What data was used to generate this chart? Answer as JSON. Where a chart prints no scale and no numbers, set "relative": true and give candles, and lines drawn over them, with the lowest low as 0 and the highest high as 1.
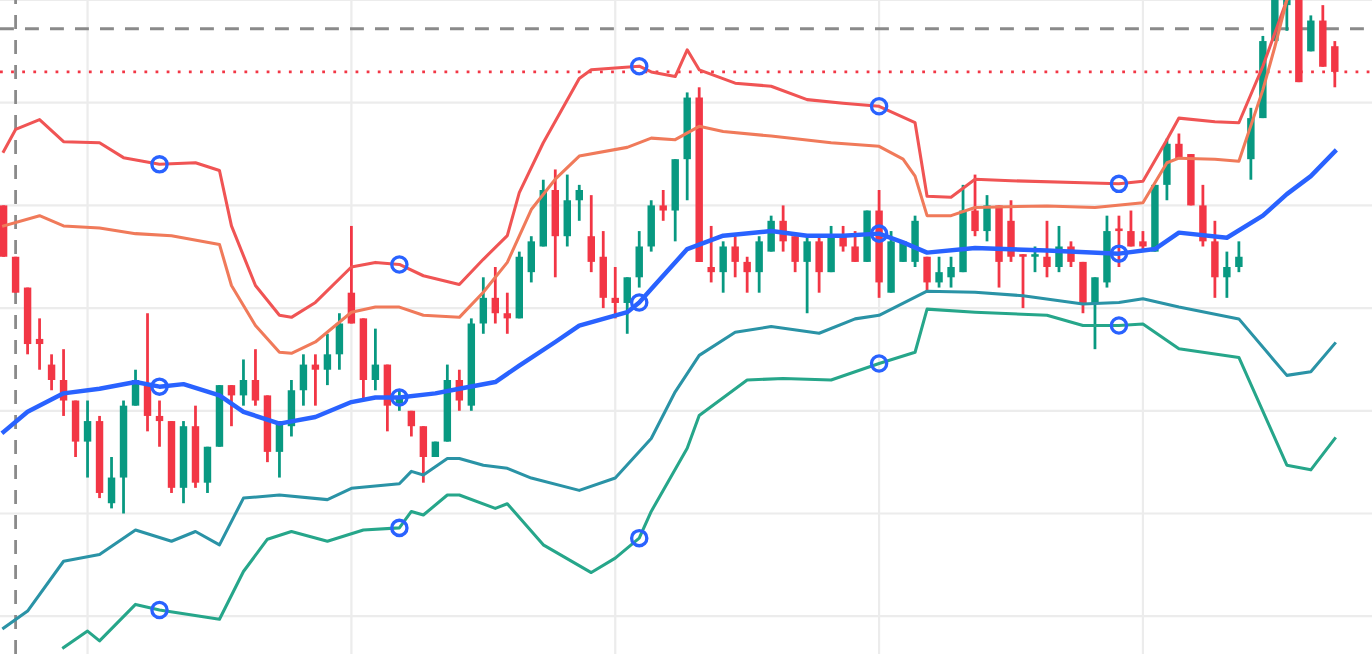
{
  "chart_data": {
    "type": "candlestick",
    "relative": true,
    "grid": true,
    "tick_labels": false,
    "categories": [
      null,
      null,
      null,
      null,
      null,
      null,
      null,
      null,
      null,
      null,
      null,
      null,
      null,
      null,
      null,
      null,
      null,
      null,
      null,
      null,
      null,
      null,
      null,
      null,
      null,
      null,
      null,
      null,
      null,
      null,
      null,
      null,
      null,
      null,
      null,
      null,
      null,
      null,
      null,
      null,
      null,
      null,
      null,
      null,
      null,
      null,
      null,
      null,
      null,
      null,
      null,
      null,
      null,
      null,
      null,
      null,
      null,
      null,
      null,
      null,
      null,
      null,
      null,
      null,
      null,
      null,
      null,
      null,
      null,
      null,
      null,
      null,
      null,
      null,
      null,
      null,
      null,
      null,
      null,
      null,
      null,
      null,
      null,
      null,
      null,
      null,
      null,
      null,
      null,
      null,
      null,
      null,
      null,
      null,
      null,
      null,
      null,
      null,
      null,
      null,
      null,
      null,
      null,
      null,
      null,
      null,
      null,
      null,
      null,
      null,
      null,
      null
    ],
    "ohlc": [
      [
        0.6,
        0.6,
        0.5,
        0.5
      ],
      [
        0.5,
        0.5,
        0.43,
        0.43
      ],
      [
        0.44,
        0.44,
        0.31,
        0.33
      ],
      [
        0.34,
        0.38,
        0.28,
        0.33
      ],
      [
        0.29,
        0.31,
        0.24,
        0.26
      ],
      [
        0.26,
        0.32,
        0.19,
        0.22
      ],
      [
        0.22,
        0.22,
        0.11,
        0.14
      ],
      [
        0.14,
        0.22,
        0.07,
        0.18
      ],
      [
        0.18,
        0.19,
        0.03,
        0.04
      ],
      [
        0.02,
        0.11,
        0.01,
        0.07
      ],
      [
        0.07,
        0.22,
        0,
        0.21
      ],
      [
        0.21,
        0.28,
        0.21,
        0.26
      ],
      [
        0.25,
        0.39,
        0.16,
        0.19
      ],
      [
        0.19,
        0.22,
        0.13,
        0.18
      ],
      [
        0.18,
        0.18,
        0.04,
        0.05
      ],
      [
        0.05,
        0.18,
        0.02,
        0.17
      ],
      [
        0.17,
        0.21,
        0.05,
        0.06
      ],
      [
        0.06,
        0.13,
        0.04,
        0.13
      ],
      [
        0.13,
        0.25,
        0.13,
        0.25
      ],
      [
        0.25,
        0.25,
        0.17,
        0.23
      ],
      [
        0.23,
        0.3,
        0.21,
        0.26
      ],
      [
        0.26,
        0.32,
        0.21,
        0.22
      ],
      [
        0.23,
        0.23,
        0.1,
        0.12
      ],
      [
        0.12,
        0.18,
        0.07,
        0.18
      ],
      [
        0.17,
        0.26,
        0.15,
        0.24
      ],
      [
        0.24,
        0.31,
        0.21,
        0.29
      ],
      [
        0.29,
        0.31,
        0.21,
        0.28
      ],
      [
        0.28,
        0.35,
        0.25,
        0.31
      ],
      [
        0.31,
        0.39,
        0.28,
        0.37
      ],
      [
        0.43,
        0.56,
        0.37,
        0.37
      ],
      [
        0.38,
        0.38,
        0.22,
        0.26
      ],
      [
        0.26,
        0.36,
        0.24,
        0.29
      ],
      [
        0.29,
        0.29,
        0.16,
        0.21
      ],
      [
        0.215,
        0.24,
        0.2,
        0.225
      ],
      [
        0.2,
        0.2,
        0.15,
        0.17
      ],
      [
        0.17,
        0.17,
        0.06,
        0.11
      ],
      [
        0.11,
        0.14,
        0.11,
        0.14
      ],
      [
        0.14,
        0.29,
        0.14,
        0.26
      ],
      [
        0.26,
        0.28,
        0.2,
        0.22
      ],
      [
        0.21,
        0.38,
        0.2,
        0.37
      ],
      [
        0.37,
        0.46,
        0.35,
        0.42
      ],
      [
        0.42,
        0.48,
        0.37,
        0.39
      ],
      [
        0.39,
        0.43,
        0.35,
        0.38
      ],
      [
        0.38,
        0.51,
        0.38,
        0.5
      ],
      [
        0.47,
        0.54,
        0.45,
        0.53
      ],
      [
        0.52,
        0.65,
        0.52,
        0.63
      ],
      [
        0.63,
        0.67,
        0.46,
        0.54
      ],
      [
        0.54,
        0.66,
        0.52,
        0.61
      ],
      [
        0.61,
        0.64,
        0.57,
        0.63
      ],
      [
        0.54,
        0.62,
        0.47,
        0.49
      ],
      [
        0.5,
        0.55,
        0.4,
        0.42
      ],
      [
        0.42,
        0.48,
        0.38,
        0.41
      ],
      [
        0.41,
        0.46,
        0.35,
        0.46
      ],
      [
        0.46,
        0.55,
        0.44,
        0.52
      ],
      [
        0.52,
        0.61,
        0.51,
        0.6
      ],
      [
        0.6,
        0.63,
        0.57,
        0.59
      ],
      [
        0.59,
        0.69,
        0.53,
        0.69
      ],
      [
        0.69,
        0.82,
        0.61,
        0.81
      ],
      [
        0.81,
        0.83,
        0.49,
        0.49
      ],
      [
        0.48,
        0.56,
        0.45,
        0.47
      ],
      [
        0.47,
        0.53,
        0.43,
        0.52
      ],
      [
        0.52,
        0.54,
        0.46,
        0.49
      ],
      [
        0.49,
        0.5,
        0.43,
        0.47
      ],
      [
        0.47,
        0.54,
        0.43,
        0.53
      ],
      [
        0.51,
        0.58,
        0.51,
        0.57
      ],
      [
        0.57,
        0.6,
        0.51,
        0.53
      ],
      [
        0.54,
        0.54,
        0.47,
        0.49
      ],
      [
        0.49,
        0.54,
        0.39,
        0.53
      ],
      [
        0.53,
        0.54,
        0.43,
        0.47
      ],
      [
        0.47,
        0.56,
        0.47,
        0.54
      ],
      [
        0.54,
        0.56,
        0.51,
        0.52
      ],
      [
        0.52,
        0.55,
        0.49,
        0.49
      ],
      [
        0.49,
        0.59,
        0.49,
        0.59
      ],
      [
        0.59,
        0.63,
        0.42,
        0.45
      ],
      [
        0.43,
        0.55,
        0.43,
        0.53
      ],
      [
        0.49,
        0.53,
        0.49,
        0.53
      ],
      [
        0.49,
        0.58,
        0.48,
        0.57
      ],
      [
        0.5,
        0.5,
        0.43,
        0.45
      ],
      [
        0.45,
        0.5,
        0.44,
        0.47
      ],
      [
        0.46,
        0.5,
        0.44,
        0.48
      ],
      [
        0.47,
        0.64,
        0.47,
        0.59
      ],
      [
        0.59,
        0.66,
        0.54,
        0.55
      ],
      [
        0.55,
        0.62,
        0.53,
        0.6
      ],
      [
        0.6,
        0.6,
        0.44,
        0.49
      ],
      [
        0.57,
        0.61,
        0.49,
        0.5
      ],
      [
        0.505,
        0.505,
        0.4,
        0.5
      ],
      [
        0.5,
        0.52,
        0.47,
        0.505
      ],
      [
        0.5,
        0.57,
        0.46,
        0.48
      ],
      [
        0.48,
        0.56,
        0.47,
        0.52
      ],
      [
        0.52,
        0.53,
        0.48,
        0.49
      ],
      [
        0.49,
        0.49,
        0.39,
        0.41
      ],
      [
        0.41,
        0.46,
        0.32,
        0.46
      ],
      [
        0.45,
        0.58,
        0.44,
        0.55
      ],
      [
        0.555,
        0.58,
        0.48,
        0.55
      ],
      [
        0.55,
        0.59,
        0.52,
        0.52
      ],
      [
        0.53,
        0.55,
        0.51,
        0.52
      ],
      [
        0.51,
        0.64,
        0.51,
        0.64
      ],
      [
        0.64,
        0.73,
        0.61,
        0.72
      ],
      [
        0.72,
        0.74,
        0.69,
        0.69
      ],
      [
        0.7,
        0.7,
        0.6,
        0.6
      ],
      [
        0.6,
        0.64,
        0.52,
        0.53
      ],
      [
        0.53,
        0.57,
        0.42,
        0.46
      ],
      [
        0.46,
        0.51,
        0.42,
        0.48
      ],
      [
        0.48,
        0.53,
        0.47,
        0.5
      ],
      [
        0.69,
        0.79,
        0.65,
        0.77
      ],
      [
        0.77,
        0.93,
        0.77,
        0.92
      ],
      [
        0.92,
        1,
        0.92,
        1
      ],
      [
        0.99,
        1,
        0.94,
        1
      ],
      [
        1,
        1,
        0.84,
        0.84
      ],
      [
        0.9,
        0.97,
        0.9,
        0.96
      ],
      [
        0.96,
        0.99,
        0.87,
        0.87
      ],
      [
        0.91,
        0.92,
        0.83,
        0.86
      ]
    ],
    "ref_lines": [
      {
        "axis": "y",
        "value": 0.944,
        "color": "#8a8a8a",
        "line_style": "dashed"
      },
      {
        "axis": "y",
        "value": 0.86,
        "color": "#f23645",
        "line_style": "dotted"
      }
    ],
    "series": [
      {
        "type": "line",
        "color": "#f05454",
        "values": [
          0.705,
          0.748,
          null,
          0.767,
          null,
          0.724,
          null,
          null,
          0.722,
          null,
          0.693,
          null,
          null,
          0.68,
          null,
          null,
          0.683,
          null,
          0.668,
          0.56,
          null,
          0.444,
          null,
          0.386,
          0.382,
          null,
          0.411,
          null,
          null,
          0.48,
          null,
          0.489,
          null,
          0.485,
          null,
          0.463,
          null,
          null,
          0.446,
          null,
          0.495,
          null,
          0.541,
          0.625,
          null,
          0.722,
          null,
          null,
          0.847,
          0.864,
          null,
          null,
          null,
          0.871,
          0.86,
          null,
          0.851,
          0.903,
          0.864,
          null,
          null,
          0.838,
          null,
          null,
          0.832,
          null,
          null,
          0.806,
          null,
          null,
          0.799,
          null,
          null,
          0.793,
          null,
          null,
          0.761,
          0.618,
          null,
          0.616,
          null,
          0.651,
          null,
          null,
          0.648,
          null,
          null,
          null,
          null,
          null,
          0.644,
          null,
          null,
          0.642,
          null,
          0.647,
          null,
          0.728,
          0.77,
          null,
          null,
          0.763,
          null,
          0.761,
          null,
          0.871,
          null,
          1.0,
          null,
          null,
          null,
          null
        ]
      },
      {
        "type": "line",
        "color": "#f07a5a",
        "values": [
          0.56,
          null,
          null,
          0.58,
          null,
          0.56,
          null,
          null,
          0.556,
          null,
          null,
          0.545,
          null,
          null,
          0.541,
          null,
          null,
          null,
          0.524,
          0.444,
          null,
          0.366,
          null,
          0.314,
          0.312,
          null,
          0.334,
          null,
          null,
          0.392,
          null,
          0.402,
          null,
          0.402,
          null,
          0.386,
          null,
          null,
          0.382,
          null,
          0.431,
          null,
          0.489,
          null,
          0.592,
          null,
          0.651,
          null,
          0.696,
          null,
          null,
          null,
          0.713,
          null,
          0.731,
          null,
          0.728,
          null,
          0.754,
          null,
          0.744,
          null,
          null,
          null,
          0.735,
          null,
          null,
          null,
          null,
          0.722,
          null,
          null,
          null,
          0.715,
          null,
          0.69,
          0.657,
          0.58,
          null,
          0.58,
          null,
          0.596,
          null,
          null,
          null,
          null,
          null,
          0.599,
          null,
          null,
          null,
          0.596,
          null,
          null,
          null,
          0.605,
          null,
          0.683,
          0.692,
          null,
          null,
          0.69,
          null,
          0.686,
          null,
          0.825,
          0.909,
          1.0,
          null,
          null,
          null,
          null
        ]
      },
      {
        "type": "line",
        "color": "#2962ff",
        "values": [
          0.159,
          null,
          0.198,
          null,
          null,
          0.234,
          null,
          null,
          0.243,
          null,
          null,
          0.256,
          null,
          0.247,
          null,
          0.252,
          null,
          null,
          0.23,
          null,
          0.198,
          null,
          null,
          0.175,
          null,
          null,
          0.188,
          null,
          null,
          0.217,
          null,
          0.226,
          null,
          0.226,
          null,
          null,
          0.234,
          null,
          0.243,
          null,
          null,
          0.256,
          null,
          0.288,
          null,
          null,
          0.334,
          null,
          0.366,
          null,
          null,
          null,
          0.392,
          0.411,
          0.437,
          null,
          null,
          0.515,
          null,
          null,
          0.541,
          null,
          null,
          null,
          0.55,
          null,
          null,
          0.541,
          null,
          null,
          0.541,
          null,
          null,
          0.545,
          null,
          0.528,
          null,
          0.508,
          null,
          null,
          null,
          0.517,
          null,
          null,
          null,
          null,
          null,
          0.512,
          null,
          null,
          null,
          null,
          null,
          0.506,
          null,
          null,
          0.515,
          null,
          0.547,
          null,
          null,
          null,
          0.537,
          null,
          null,
          0.58,
          null,
          0.622,
          null,
          0.657,
          null,
          0.705
        ]
      },
      {
        "type": "line",
        "color": "#2a93a6",
        "values": [
          -0.223,
          null,
          -0.19,
          null,
          null,
          -0.093,
          null,
          null,
          -0.08,
          null,
          null,
          -0.032,
          null,
          null,
          -0.054,
          null,
          -0.035,
          null,
          -0.061,
          null,
          0.03,
          null,
          null,
          0.036,
          null,
          null,
          null,
          0.027,
          null,
          0.049,
          null,
          null,
          null,
          0.058,
          0.082,
          0.075,
          null,
          0.107,
          0.107,
          null,
          0.094,
          null,
          0.088,
          null,
          0.069,
          null,
          null,
          null,
          0.045,
          null,
          null,
          0.069,
          null,
          null,
          0.146,
          null,
          0.237,
          null,
          0.308,
          null,
          null,
          0.353,
          null,
          null,
          0.364,
          null,
          null,
          null,
          0.351,
          null,
          null,
          0.379,
          null,
          0.386,
          null,
          null,
          null,
          0.433,
          null,
          null,
          null,
          0.431,
          null,
          null,
          null,
          0.424,
          null,
          null,
          null,
          null,
          0.408,
          null,
          null,
          0.411,
          null,
          0.418,
          null,
          null,
          0.402,
          null,
          null,
          null,
          null,
          0.379,
          null,
          null,
          null,
          0.269,
          null,
          0.276,
          null,
          0.331
        ]
      },
      {
        "type": "line",
        "color": "#26a68a",
        "values": [
          null,
          null,
          null,
          null,
          null,
          -0.261,
          null,
          -0.229,
          -0.248,
          null,
          null,
          -0.177,
          null,
          -0.188,
          null,
          null,
          null,
          null,
          -0.206,
          null,
          -0.113,
          null,
          -0.05,
          null,
          -0.035,
          null,
          null,
          -0.054,
          null,
          null,
          -0.032,
          null,
          null,
          -0.028,
          0.004,
          -0.003,
          null,
          0.036,
          0.036,
          null,
          null,
          0.01,
          0.019,
          null,
          null,
          -0.061,
          null,
          null,
          null,
          -0.115,
          null,
          -0.087,
          null,
          -0.048,
          0.004,
          null,
          null,
          0.127,
          0.191,
          null,
          null,
          null,
          0.26,
          null,
          null,
          0.263,
          null,
          null,
          null,
          0.26,
          null,
          null,
          null,
          0.292,
          null,
          null,
          0.314,
          0.398,
          null,
          null,
          null,
          0.392,
          null,
          null,
          null,
          null,
          null,
          0.386,
          null,
          null,
          0.366,
          null,
          null,
          0.366,
          null,
          0.369,
          null,
          null,
          0.321,
          null,
          null,
          null,
          null,
          0.304,
          null,
          null,
          null,
          0.094,
          null,
          0.085,
          null,
          0.146
        ]
      },
      {
        "type": "scatter",
        "color": "#2962ff",
        "marker": "circle",
        "values": [
          null,
          null,
          null,
          null,
          null,
          null,
          null,
          null,
          null,
          null,
          null,
          null,
          null,
          0.68,
          null,
          null,
          null,
          null,
          null,
          null,
          null,
          null,
          null,
          null,
          null,
          null,
          null,
          null,
          null,
          null,
          null,
          null,
          null,
          0.485,
          null,
          null,
          null,
          null,
          null,
          null,
          null,
          null,
          null,
          null,
          null,
          null,
          null,
          null,
          null,
          null,
          null,
          null,
          null,
          0.871,
          null,
          null,
          null,
          null,
          null,
          null,
          null,
          null,
          null,
          null,
          null,
          null,
          null,
          null,
          null,
          null,
          null,
          null,
          null,
          0.793,
          null,
          null,
          null,
          null,
          null,
          null,
          null,
          null,
          null,
          null,
          null,
          null,
          null,
          null,
          null,
          null,
          null,
          null,
          null,
          0.642,
          null,
          null,
          null,
          null,
          null,
          null,
          null,
          null,
          null,
          null,
          null,
          null,
          null,
          null,
          null,
          null,
          null,
          null
        ]
      },
      {
        "type": "scatter",
        "color": "#2962ff",
        "marker": "circle",
        "values": [
          null,
          null,
          null,
          null,
          null,
          null,
          null,
          null,
          null,
          null,
          null,
          null,
          null,
          0.247,
          null,
          null,
          null,
          null,
          null,
          null,
          null,
          null,
          null,
          null,
          null,
          null,
          null,
          null,
          null,
          null,
          null,
          null,
          null,
          0.226,
          null,
          null,
          null,
          null,
          null,
          null,
          null,
          null,
          null,
          null,
          null,
          null,
          null,
          null,
          null,
          null,
          null,
          null,
          null,
          0.411,
          null,
          null,
          null,
          null,
          null,
          null,
          null,
          null,
          null,
          null,
          null,
          null,
          null,
          null,
          null,
          null,
          null,
          null,
          null,
          0.545,
          null,
          null,
          null,
          null,
          null,
          null,
          null,
          null,
          null,
          null,
          null,
          null,
          null,
          null,
          null,
          null,
          null,
          null,
          null,
          0.506,
          null,
          null,
          null,
          null,
          null,
          null,
          null,
          null,
          null,
          null,
          null,
          null,
          null,
          null,
          null,
          null,
          null,
          null
        ]
      },
      {
        "type": "scatter",
        "color": "#2962ff",
        "marker": "circle",
        "values": [
          null,
          null,
          null,
          null,
          null,
          null,
          null,
          null,
          null,
          null,
          null,
          null,
          null,
          null,
          null,
          null,
          null,
          null,
          null,
          null,
          null,
          null,
          null,
          null,
          null,
          null,
          null,
          null,
          null,
          null,
          null,
          null,
          null,
          null,
          null,
          null,
          null,
          null,
          null,
          null,
          null,
          null,
          null,
          null,
          null,
          null,
          null,
          null,
          null,
          null,
          null,
          null,
          null,
          null,
          null,
          null,
          null,
          null,
          null,
          null,
          null,
          null,
          null,
          null,
          null,
          null,
          null,
          null,
          null,
          null,
          null,
          null,
          null,
          0.292,
          null,
          null,
          null,
          null,
          null,
          null,
          null,
          null,
          null,
          null,
          null,
          null,
          null,
          null,
          null,
          null,
          null,
          null,
          null,
          0.366,
          null,
          null,
          null,
          null,
          null,
          null,
          null,
          null,
          null,
          null,
          null,
          null,
          null,
          null,
          null,
          null,
          null,
          null
        ]
      }
    ]
  }
}
